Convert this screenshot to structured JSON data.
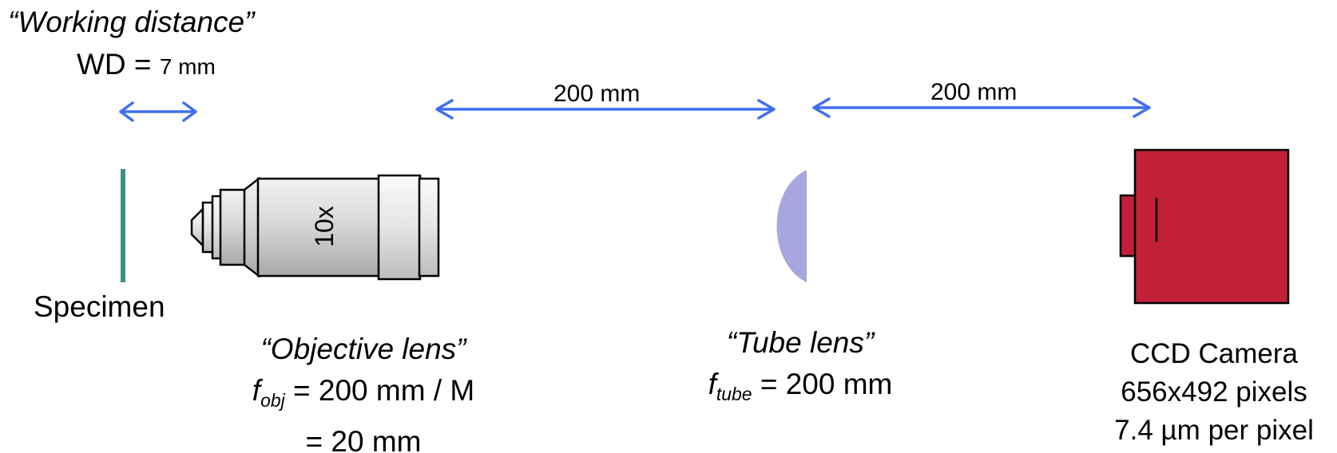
{
  "working_distance": {
    "title": "“Working distance”",
    "eq_prefix": "WD = ",
    "eq_value": "7 mm"
  },
  "dimensions": {
    "obj_to_tube": "200 mm",
    "tube_to_camera": "200 mm"
  },
  "specimen": {
    "label": "Specimen"
  },
  "objective": {
    "magnification": "10x",
    "title": "“Objective lens”",
    "f_symbol": "f",
    "f_sub": "obj",
    "f_eq": " = 200 mm / M",
    "f_value": "= 20 mm"
  },
  "tube_lens": {
    "title": "“Tube lens”",
    "f_symbol": "f",
    "f_sub": "tube",
    "f_eq": " = 200 mm"
  },
  "camera": {
    "title": "CCD Camera",
    "resolution": "656x492 pixels",
    "pixel_size": "7.4 µm per pixel"
  },
  "colors": {
    "arrow": "#3f6ff0",
    "specimen": "#3a8f8c",
    "tube_lens": "#a7a6e0",
    "camera": "#c21f38",
    "objective_body": "#d6d6d6"
  }
}
